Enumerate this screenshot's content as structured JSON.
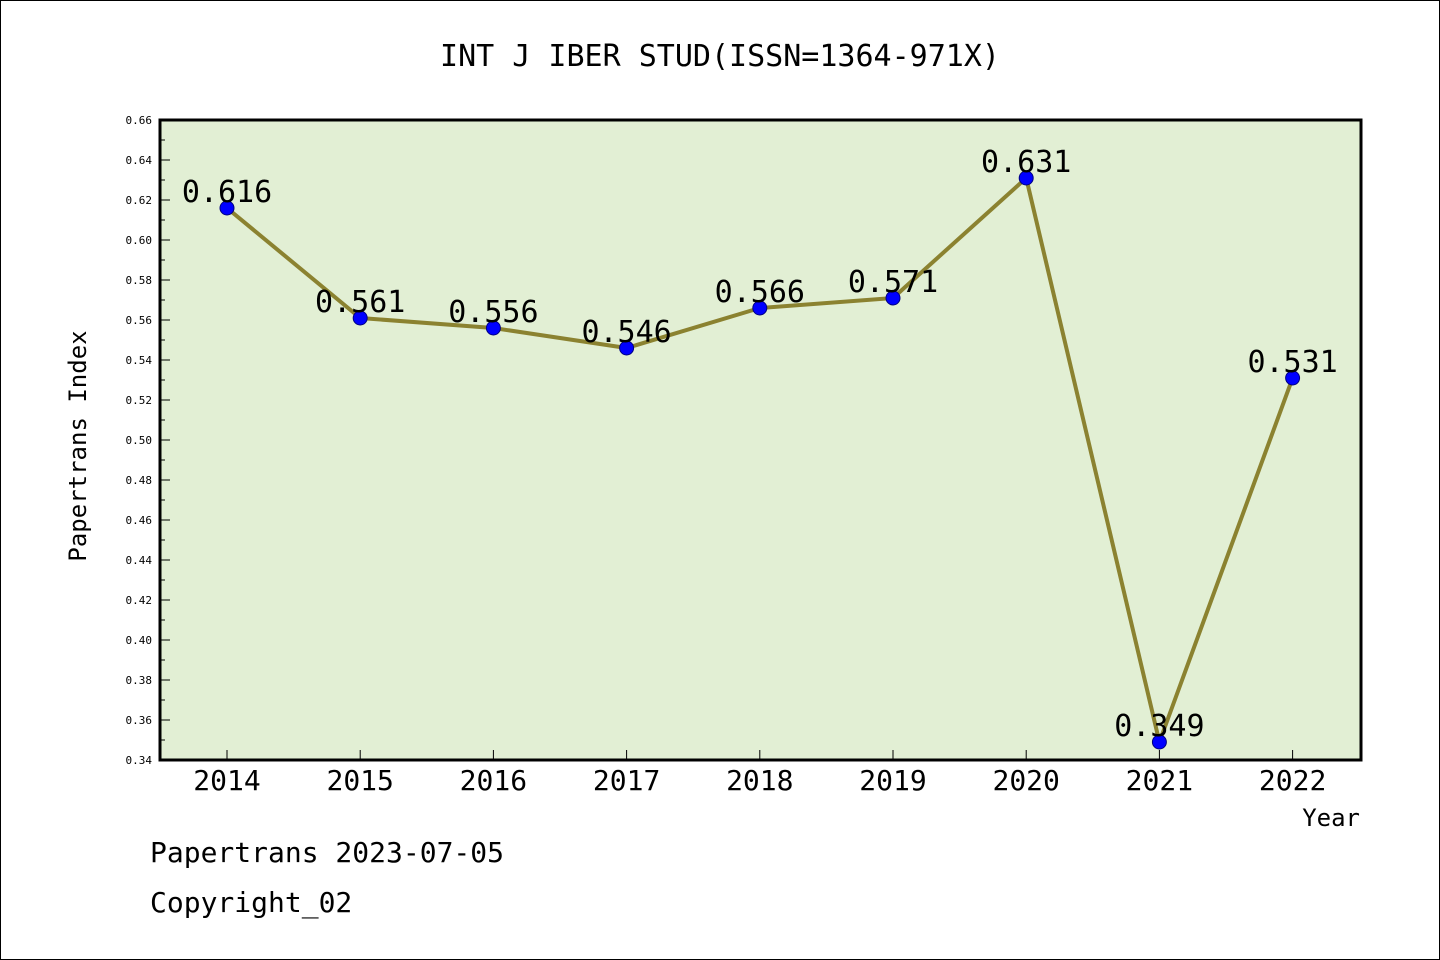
{
  "chart_data": {
    "type": "line",
    "title": "INT J IBER STUD(ISSN=1364-971X)",
    "xlabel": "Year",
    "ylabel": "Papertrans Index",
    "categories": [
      "2014",
      "2015",
      "2016",
      "2017",
      "2018",
      "2019",
      "2020",
      "2021",
      "2022"
    ],
    "values": [
      0.616,
      0.561,
      0.556,
      0.546,
      0.566,
      0.571,
      0.631,
      0.349,
      0.531
    ],
    "data_labels": [
      "0.616",
      "0.561",
      "0.556",
      "0.546",
      "0.566",
      "0.571",
      "0.631",
      "0.349",
      "0.531"
    ],
    "ylim": [
      0.34,
      0.66
    ],
    "yticks": [
      "0.34",
      "0.36",
      "0.38",
      "0.40",
      "0.42",
      "0.44",
      "0.46",
      "0.48",
      "0.50",
      "0.52",
      "0.54",
      "0.56",
      "0.58",
      "0.60",
      "0.62",
      "0.64",
      "0.66"
    ],
    "grid": false,
    "legend": "none",
    "colors": {
      "plot_background": "#e2efd4",
      "line": "#8b8230",
      "marker": "#0000ff",
      "marker_edge": "#000080"
    }
  },
  "footer": {
    "line1": "Papertrans 2023-07-05",
    "line2": "Copyright_02"
  }
}
